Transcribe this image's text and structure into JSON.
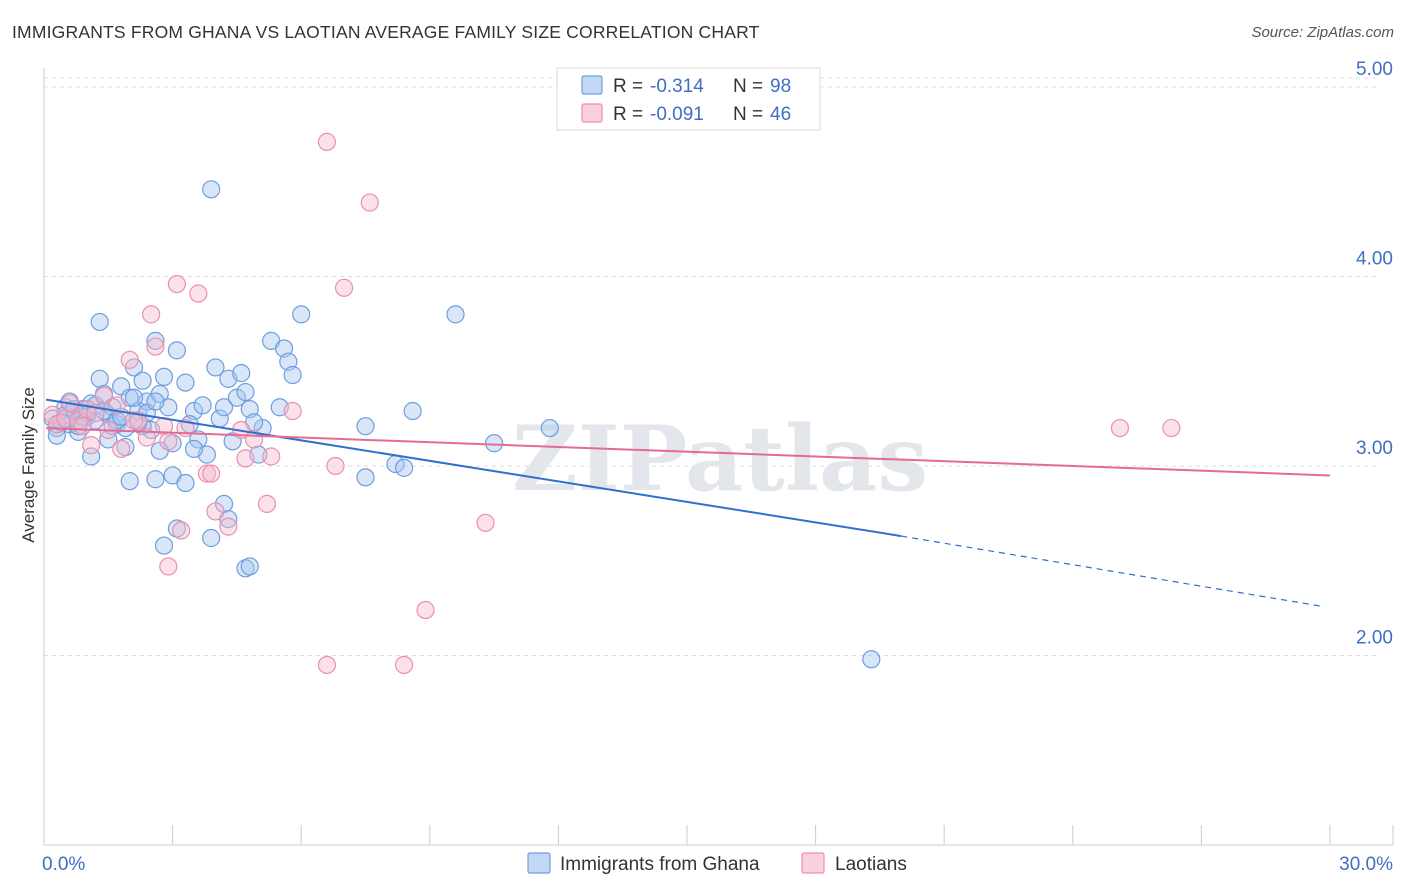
{
  "chart_data": {
    "type": "scatter",
    "title": "IMMIGRANTS FROM GHANA VS LAOTIAN AVERAGE FAMILY SIZE CORRELATION CHART",
    "source": "Source: ZipAtlas.com",
    "ylabel": "Average Family Size",
    "xlabel": "",
    "xlim": [
      0,
      30
    ],
    "ylim": [
      1.0,
      5.1
    ],
    "x_tick_labels": [
      "0.0%",
      "30.0%"
    ],
    "y_ticks": [
      2.0,
      3.0,
      4.0,
      5.0
    ],
    "y_tick_labels": [
      "2.00",
      "3.00",
      "4.00",
      "5.00"
    ],
    "grid": true,
    "watermark": "ZIPatlas",
    "legend": {
      "position": "top-center",
      "entries": [
        {
          "r_label": "R =",
          "r_value": "-0.314",
          "n_label": "N =",
          "n_value": "98"
        },
        {
          "r_label": "R =",
          "r_value": "-0.091",
          "n_label": "N =",
          "n_value": "46"
        }
      ]
    },
    "colors": {
      "ghana_fill": "#a8c8f0",
      "ghana_stroke": "#6f9ede",
      "ghana_line": "#2f6fce",
      "laotian_fill": "#f7bcd0",
      "laotian_stroke": "#ec8fae",
      "laotian_line": "#e36b95",
      "tick_text": "#3f6fc4"
    },
    "series": [
      {
        "name": "Immigrants from Ghana",
        "trend": {
          "x0": 0.05,
          "y0": 3.35,
          "x1": 20.0,
          "y1": 2.63,
          "dash_x1": 29.8,
          "dash_y1": 2.26
        },
        "points": [
          [
            0.2,
            3.25
          ],
          [
            0.3,
            3.2
          ],
          [
            0.3,
            3.16
          ],
          [
            0.5,
            3.31
          ],
          [
            0.5,
            3.27
          ],
          [
            0.6,
            3.22
          ],
          [
            0.7,
            3.29
          ],
          [
            0.8,
            3.18
          ],
          [
            0.9,
            3.3
          ],
          [
            1.0,
            3.26
          ],
          [
            1.1,
            3.33
          ],
          [
            1.2,
            3.24
          ],
          [
            1.3,
            3.46
          ],
          [
            1.4,
            3.38
          ],
          [
            1.5,
            3.27
          ],
          [
            1.6,
            3.31
          ],
          [
            1.7,
            3.22
          ],
          [
            1.8,
            3.42
          ],
          [
            1.9,
            3.2
          ],
          [
            2.0,
            3.36
          ],
          [
            2.1,
            3.52
          ],
          [
            2.2,
            3.29
          ],
          [
            2.3,
            3.45
          ],
          [
            2.4,
            3.34
          ],
          [
            2.5,
            3.19
          ],
          [
            2.6,
            3.66
          ],
          [
            2.7,
            3.38
          ],
          [
            2.8,
            3.47
          ],
          [
            2.9,
            3.31
          ],
          [
            3.0,
            3.12
          ],
          [
            3.1,
            3.61
          ],
          [
            3.3,
            3.44
          ],
          [
            3.5,
            3.29
          ],
          [
            3.6,
            3.14
          ],
          [
            3.8,
            3.06
          ],
          [
            4.0,
            3.52
          ],
          [
            4.1,
            3.25
          ],
          [
            4.2,
            3.31
          ],
          [
            4.3,
            3.46
          ],
          [
            4.4,
            3.13
          ],
          [
            4.5,
            3.36
          ],
          [
            4.6,
            3.49
          ],
          [
            4.7,
            3.39
          ],
          [
            4.8,
            3.3
          ],
          [
            5.0,
            3.06
          ],
          [
            5.1,
            3.2
          ],
          [
            5.3,
            3.66
          ],
          [
            5.5,
            3.31
          ],
          [
            5.6,
            3.62
          ],
          [
            5.7,
            3.55
          ],
          [
            5.8,
            3.48
          ],
          [
            6.0,
            3.8
          ],
          [
            1.3,
            3.76
          ],
          [
            1.1,
            3.05
          ],
          [
            1.9,
            3.1
          ],
          [
            2.0,
            2.92
          ],
          [
            2.7,
            3.08
          ],
          [
            2.6,
            2.93
          ],
          [
            3.0,
            2.95
          ],
          [
            3.1,
            2.67
          ],
          [
            3.3,
            2.91
          ],
          [
            3.9,
            2.62
          ],
          [
            4.2,
            2.8
          ],
          [
            4.3,
            2.72
          ],
          [
            4.7,
            2.46
          ],
          [
            2.8,
            2.58
          ],
          [
            4.8,
            2.47
          ],
          [
            7.5,
            3.21
          ],
          [
            7.5,
            2.94
          ],
          [
            8.2,
            3.01
          ],
          [
            8.4,
            2.99
          ],
          [
            8.6,
            3.29
          ],
          [
            9.6,
            3.8
          ],
          [
            10.5,
            3.12
          ],
          [
            11.8,
            3.2
          ],
          [
            3.9,
            4.46
          ],
          [
            19.3,
            1.98
          ],
          [
            0.8,
            3.21
          ],
          [
            1.0,
            3.28
          ],
          [
            1.5,
            3.14
          ],
          [
            2.3,
            3.21
          ],
          [
            3.5,
            3.09
          ],
          [
            0.4,
            3.23
          ],
          [
            0.6,
            3.34
          ],
          [
            1.2,
            3.32
          ],
          [
            1.6,
            3.21
          ],
          [
            2.1,
            3.36
          ],
          [
            2.4,
            3.28
          ],
          [
            0.9,
            3.26
          ],
          [
            1.4,
            3.29
          ],
          [
            1.7,
            3.24
          ],
          [
            2.2,
            3.23
          ],
          [
            2.6,
            3.34
          ],
          [
            3.4,
            3.22
          ],
          [
            3.7,
            3.32
          ],
          [
            0.7,
            3.3
          ],
          [
            1.8,
            3.26
          ],
          [
            4.9,
            3.23
          ]
        ]
      },
      {
        "name": "Laotians",
        "trend": {
          "x0": 0.05,
          "y0": 3.2,
          "x1": 30.0,
          "y1": 2.95
        },
        "points": [
          [
            0.2,
            3.27
          ],
          [
            0.3,
            3.22
          ],
          [
            0.5,
            3.25
          ],
          [
            0.6,
            3.33
          ],
          [
            0.8,
            3.24
          ],
          [
            1.0,
            3.3
          ],
          [
            1.1,
            3.11
          ],
          [
            1.2,
            3.28
          ],
          [
            1.4,
            3.37
          ],
          [
            1.5,
            3.19
          ],
          [
            1.7,
            3.32
          ],
          [
            1.8,
            3.09
          ],
          [
            2.0,
            3.56
          ],
          [
            2.2,
            3.24
          ],
          [
            2.4,
            3.15
          ],
          [
            2.5,
            3.8
          ],
          [
            2.6,
            3.63
          ],
          [
            2.8,
            3.21
          ],
          [
            2.9,
            3.13
          ],
          [
            3.1,
            3.96
          ],
          [
            3.6,
            3.91
          ],
          [
            3.8,
            2.96
          ],
          [
            3.9,
            2.96
          ],
          [
            4.0,
            2.76
          ],
          [
            4.3,
            2.68
          ],
          [
            4.6,
            3.19
          ],
          [
            4.7,
            3.04
          ],
          [
            4.9,
            3.14
          ],
          [
            5.2,
            2.8
          ],
          [
            5.3,
            3.05
          ],
          [
            5.8,
            3.29
          ],
          [
            6.6,
            4.71
          ],
          [
            6.8,
            3.0
          ],
          [
            7.0,
            3.94
          ],
          [
            7.6,
            4.39
          ],
          [
            3.2,
            2.66
          ],
          [
            2.9,
            2.47
          ],
          [
            6.6,
            1.95
          ],
          [
            8.4,
            1.95
          ],
          [
            8.9,
            2.24
          ],
          [
            10.3,
            2.7
          ],
          [
            25.1,
            3.2
          ],
          [
            26.3,
            3.2
          ],
          [
            2.1,
            3.24
          ],
          [
            0.9,
            3.21
          ],
          [
            3.3,
            3.2
          ]
        ]
      }
    ]
  },
  "bottom_legend": {
    "ghana_label": "Immigrants from Ghana",
    "laotian_label": "Laotians"
  }
}
